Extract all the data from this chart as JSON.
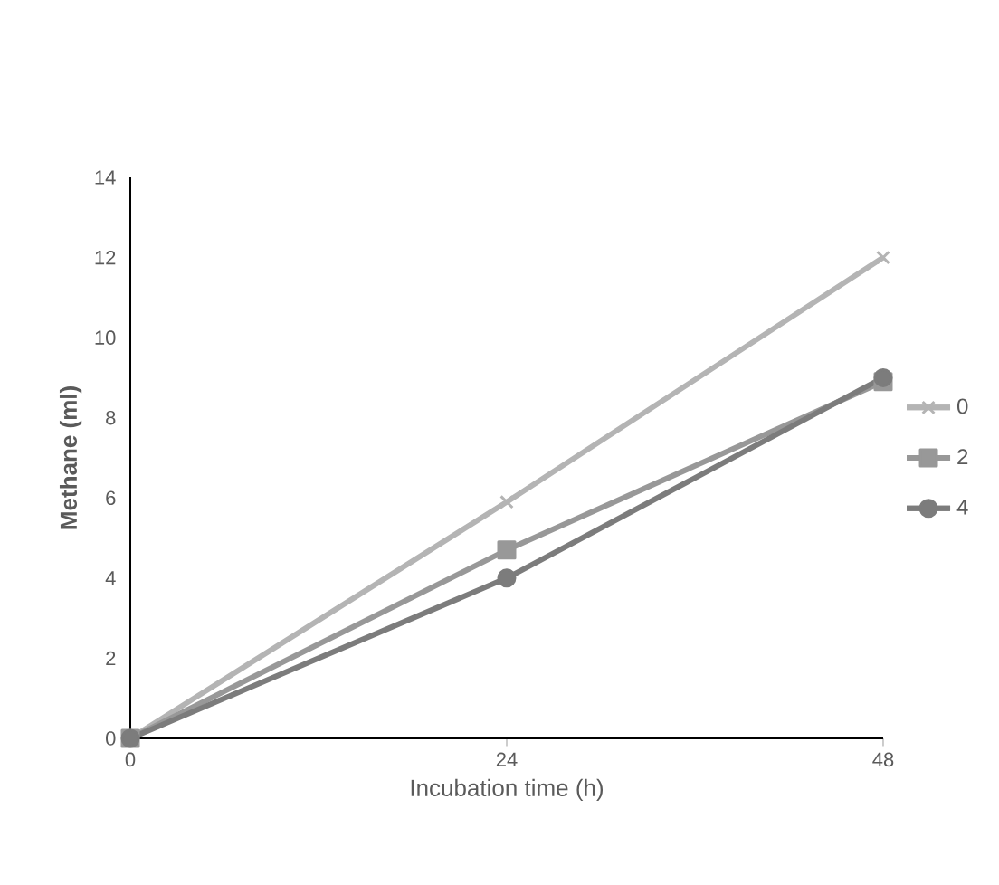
{
  "chart_data": {
    "type": "line",
    "xlabel": "Incubation time (h)",
    "ylabel": "Methane (ml)",
    "categories": [
      "0",
      "24",
      "48"
    ],
    "ylim": [
      0,
      14
    ],
    "yticks": [
      0,
      2,
      4,
      6,
      8,
      10,
      12,
      14
    ],
    "legend": "right",
    "grid": false,
    "line_style": "solid",
    "series": [
      {
        "name": "0",
        "color": "#b4b4b4",
        "marker": "cross",
        "values": [
          0,
          5.9,
          12
        ]
      },
      {
        "name": "2",
        "color": "#989898",
        "marker": "square",
        "values": [
          0,
          4.7,
          8.9
        ]
      },
      {
        "name": "4",
        "color": "#7c7c7c",
        "marker": "circle",
        "values": [
          0,
          4.0,
          9.0
        ]
      }
    ]
  }
}
